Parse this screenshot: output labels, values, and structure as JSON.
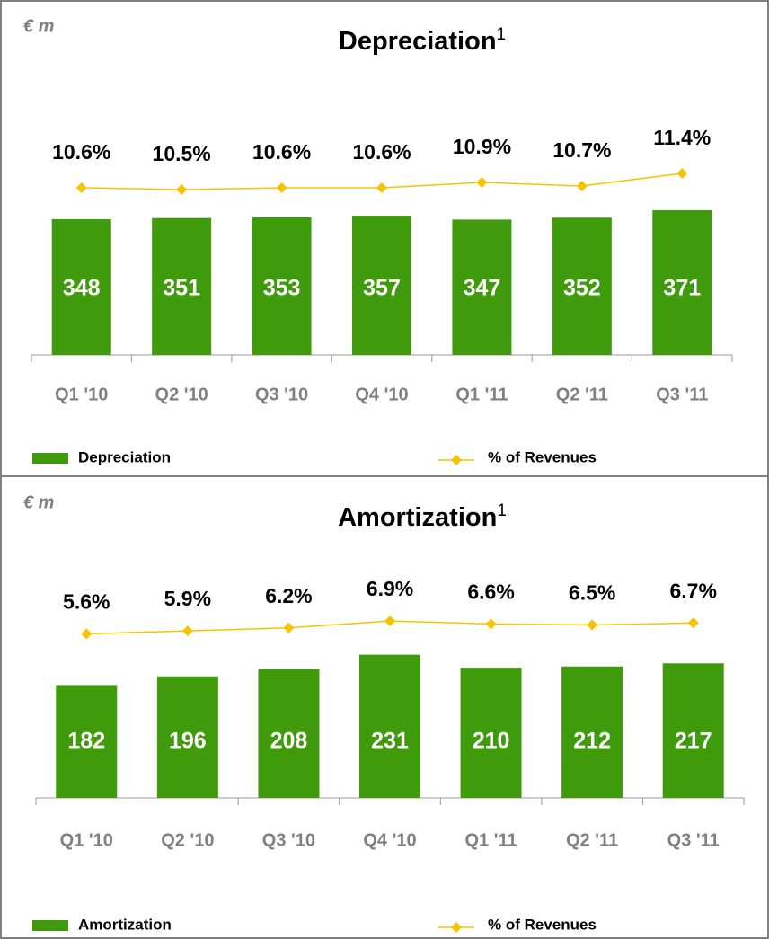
{
  "chart_data": [
    {
      "type": "bar",
      "title": "Depreciation",
      "title_note": "1",
      "unit_label": "€ m",
      "categories": [
        "Q1 '10",
        "Q2 '10",
        "Q3 '10",
        "Q4 '10",
        "Q1 '11",
        "Q2 '11",
        "Q3 '11"
      ],
      "series": [
        {
          "name": "Depreciation",
          "color": "#3f9b0b",
          "values": [
            348,
            351,
            353,
            357,
            347,
            352,
            371
          ]
        },
        {
          "name": "% of Revenues",
          "type": "line",
          "axis": "y2",
          "color": "#f5c400",
          "values": [
            10.6,
            10.5,
            10.6,
            10.6,
            10.9,
            10.7,
            11.4
          ],
          "value_labels": [
            "10.6%",
            "10.5%",
            "10.6%",
            "10.6%",
            "10.9%",
            "10.7%",
            "11.4%"
          ]
        }
      ]
    },
    {
      "type": "bar",
      "title": "Amortization",
      "title_note": "1",
      "unit_label": "€ m",
      "categories": [
        "Q1 '10",
        "Q2 '10",
        "Q3 '10",
        "Q4 '10",
        "Q1 '11",
        "Q2 '11",
        "Q3 '11"
      ],
      "series": [
        {
          "name": "Amortization",
          "color": "#3f9b0b",
          "values": [
            182,
            196,
            208,
            231,
            210,
            212,
            217
          ]
        },
        {
          "name": "% of Revenues",
          "type": "line",
          "axis": "y2",
          "color": "#f5c400",
          "values": [
            5.6,
            5.9,
            6.2,
            6.9,
            6.6,
            6.5,
            6.7
          ],
          "value_labels": [
            "5.6%",
            "5.9%",
            "6.2%",
            "6.9%",
            "6.6%",
            "6.5%",
            "6.7%"
          ]
        }
      ]
    }
  ]
}
